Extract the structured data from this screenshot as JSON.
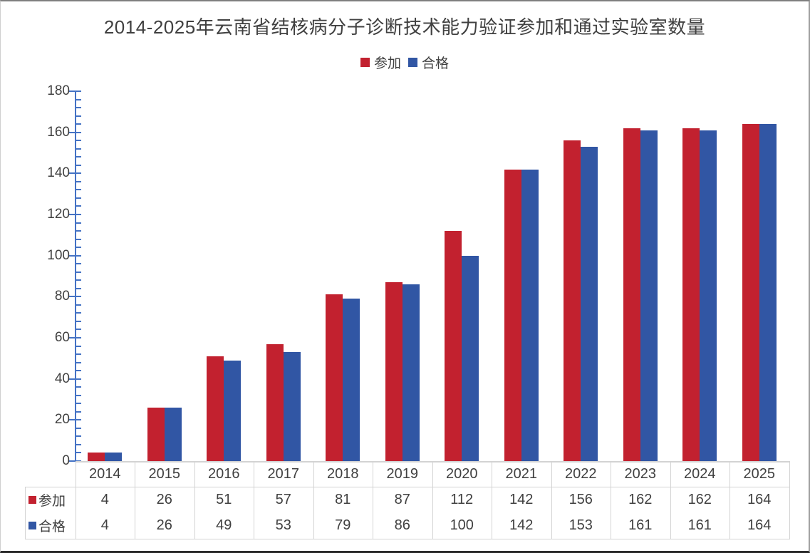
{
  "title": "2014-2025年云南省结核病分子诊断技术能力验证参加和通过实验室数量",
  "legend": {
    "position": "top",
    "items": [
      {
        "label": "参加",
        "color": "#c2212f"
      },
      {
        "label": "合格",
        "color": "#3156a4"
      }
    ]
  },
  "colors": {
    "series_participate": "#c2212f",
    "series_pass": "#3156a4",
    "axis": "#4472c4",
    "table_border": "#d3d3d3",
    "text": "#404040"
  },
  "chart_data": {
    "type": "bar",
    "title": "2014-2025年云南省结核病分子诊断技术能力验证参加和通过实验室数量",
    "xlabel": "",
    "ylabel": "",
    "categories": [
      "2014",
      "2015",
      "2016",
      "2017",
      "2018",
      "2019",
      "2020",
      "2021",
      "2022",
      "2023",
      "2024",
      "2025"
    ],
    "series": [
      {
        "name": "参加",
        "color": "#c2212f",
        "values": [
          4,
          26,
          51,
          57,
          81,
          87,
          112,
          142,
          156,
          162,
          162,
          164
        ]
      },
      {
        "name": "合格",
        "color": "#3156a4",
        "values": [
          4,
          26,
          49,
          53,
          79,
          86,
          100,
          142,
          153,
          161,
          161,
          164
        ]
      }
    ],
    "ylim": [
      0,
      180
    ],
    "ytick_interval": 20,
    "yticks": [
      0,
      20,
      40,
      60,
      80,
      100,
      120,
      140,
      160,
      180
    ],
    "minor_tick_unit": 4,
    "grid": false,
    "legend_position": "top",
    "data_table_shown": true
  }
}
